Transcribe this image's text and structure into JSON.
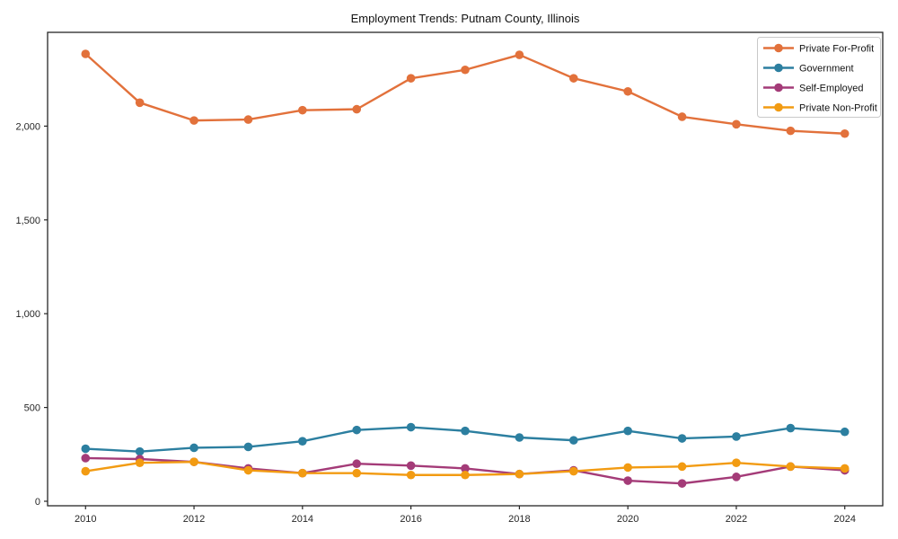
{
  "chart_data": {
    "type": "line",
    "title": "Employment Trends: Putnam County, Illinois",
    "xlabel": "",
    "ylabel": "",
    "x": [
      2010,
      2011,
      2012,
      2013,
      2014,
      2015,
      2016,
      2017,
      2018,
      2019,
      2020,
      2021,
      2022,
      2023,
      2024
    ],
    "series": [
      {
        "name": "Private For-Profit",
        "color": "#e2713b",
        "values": [
          2385,
          2125,
          2030,
          2035,
          2085,
          2090,
          2255,
          2300,
          2380,
          2255,
          2185,
          2050,
          2010,
          1975,
          1960
        ]
      },
      {
        "name": "Government",
        "color": "#2c7fa0",
        "values": [
          280,
          265,
          285,
          290,
          320,
          380,
          395,
          375,
          340,
          325,
          375,
          335,
          345,
          390,
          370
        ]
      },
      {
        "name": "Self-Employed",
        "color": "#a43b78",
        "values": [
          230,
          225,
          210,
          175,
          150,
          200,
          190,
          175,
          145,
          165,
          110,
          95,
          130,
          185,
          165
        ]
      },
      {
        "name": "Private Non-Profit",
        "color": "#f29b12",
        "values": [
          160,
          205,
          210,
          165,
          150,
          150,
          140,
          140,
          145,
          160,
          180,
          185,
          205,
          185,
          175
        ]
      }
    ],
    "xlim": [
      2009.3,
      2024.7
    ],
    "ylim": [
      -24,
      2500
    ],
    "x_ticks": [
      2010,
      2012,
      2014,
      2016,
      2018,
      2020,
      2022,
      2024
    ],
    "y_ticks": [
      0,
      500,
      1000,
      1500,
      2000
    ],
    "y_tick_labels": [
      "0",
      "500",
      "1,000",
      "1,500",
      "2,000"
    ],
    "grid": false,
    "legend_position": "top-right",
    "frame_color": "#262626",
    "tick_label_color": "#262626",
    "legend_border_color": "#c9c9c9"
  }
}
